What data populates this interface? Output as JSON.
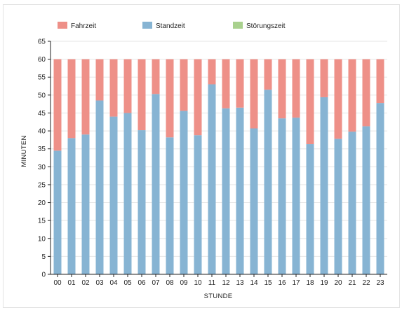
{
  "chart_data": {
    "type": "bar",
    "stacked": true,
    "xlabel": "STUNDE",
    "ylabel": "MINUTEN",
    "ylim": [
      0,
      65
    ],
    "yticks": [
      0,
      5,
      10,
      15,
      20,
      25,
      30,
      35,
      40,
      45,
      50,
      55,
      60,
      65
    ],
    "grid": true,
    "legend_position": "top",
    "categories": [
      "00",
      "01",
      "02",
      "03",
      "04",
      "05",
      "06",
      "07",
      "08",
      "09",
      "10",
      "11",
      "12",
      "13",
      "14",
      "15",
      "16",
      "17",
      "18",
      "19",
      "20",
      "21",
      "22",
      "23"
    ],
    "series": [
      {
        "name": "Standzeit",
        "color": "#87b4d3",
        "values": [
          34.5,
          38,
          39,
          48.5,
          44,
          45,
          40.2,
          50.3,
          38.2,
          45.6,
          38.8,
          53,
          46.3,
          46.5,
          40.7,
          51.5,
          43.5,
          43.7,
          36.3,
          49.4,
          37.8,
          39.8,
          41.3,
          47.8
        ]
      },
      {
        "name": "Fahrzeit",
        "color": "#ee9088",
        "values": [
          25.5,
          22,
          21,
          11.5,
          16,
          15,
          19.8,
          9.7,
          21.8,
          14.4,
          21.2,
          7,
          13.7,
          13.5,
          19.3,
          8.5,
          16.5,
          16.3,
          23.7,
          10.6,
          22.2,
          20.2,
          18.7,
          12.2
        ]
      },
      {
        "name": "Störungszeit",
        "color": "#a9d18e",
        "values": [
          0,
          0,
          0,
          0,
          0,
          0,
          0,
          0,
          0,
          0,
          0,
          0,
          0,
          0,
          0,
          0,
          0,
          0,
          0,
          0,
          0,
          0,
          0,
          0
        ]
      }
    ],
    "legend": [
      {
        "name": "Fahrzeit",
        "color": "#ee9088"
      },
      {
        "name": "Standzeit",
        "color": "#87b4d3"
      },
      {
        "name": "Störungszeit",
        "color": "#a9d18e"
      }
    ]
  }
}
